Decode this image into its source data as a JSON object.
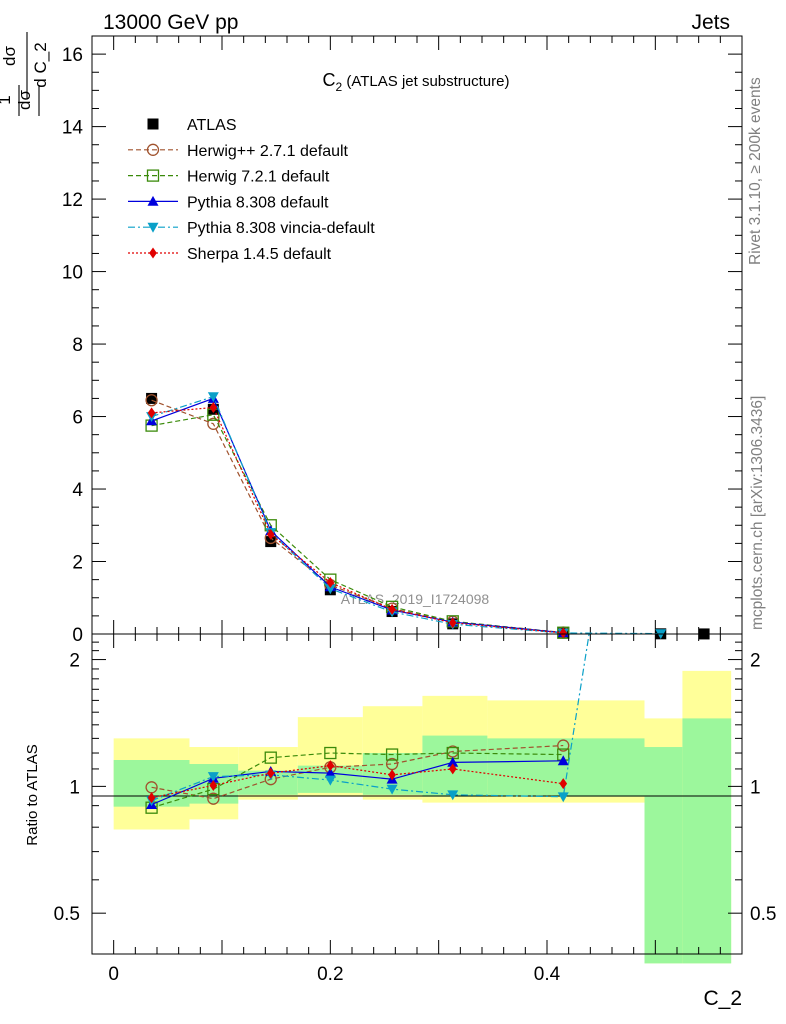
{
  "header": {
    "left": "13000 GeV pp",
    "right": "Jets",
    "side_top": "Rivet 3.1.10, ≥ 200k events",
    "side_bottom": "mcplots.cern.ch [arXiv:1306.3436]",
    "watermark": "ATLAS_2019_I1724098"
  },
  "colors": {
    "atlas": "#000000",
    "herwigpp": "#a0522d",
    "herwig7": "#3a8a0a",
    "pythia": "#0000dd",
    "vincia": "#0aa0c8",
    "sherpa": "#e00000",
    "band_inner": "#9cf79c",
    "band_outer": "#ffff99"
  },
  "chart_data": [
    {
      "type": "line",
      "title": "C2 (ATLAS jet substructure)",
      "title_main": "C",
      "title_sub": "2",
      "title_rest": " (ATLAS jet substructure)",
      "ylabel": "1/σ dσ/d C_2",
      "xlim": [
        -0.02,
        0.58
      ],
      "ylim": [
        0,
        16.5
      ],
      "yticks": [
        0,
        2,
        4,
        6,
        8,
        10,
        12,
        14,
        16
      ],
      "legend_position": "top-left",
      "series": [
        {
          "key": "atlas",
          "name": "ATLAS",
          "x": [
            0.035,
            0.092,
            0.145,
            0.2,
            0.257,
            0.313,
            0.415,
            0.505,
            0.545
          ],
          "y": [
            6.5,
            6.2,
            2.55,
            1.22,
            0.62,
            0.28,
            0.03,
            0.005,
            0.002
          ]
        },
        {
          "key": "herwigpp",
          "name": "Herwig++ 2.7.1 default",
          "x": [
            0.035,
            0.092,
            0.145,
            0.2,
            0.257,
            0.313,
            0.415
          ],
          "y": [
            6.45,
            5.8,
            2.65,
            1.35,
            0.7,
            0.34,
            0.04
          ]
        },
        {
          "key": "herwig7",
          "name": "Herwig 7.2.1 default",
          "x": [
            0.035,
            0.092,
            0.145,
            0.2,
            0.257,
            0.313,
            0.415
          ],
          "y": [
            5.75,
            6.05,
            3.0,
            1.5,
            0.75,
            0.35,
            0.035
          ]
        },
        {
          "key": "pythia",
          "name": "Pythia 8.308 default",
          "x": [
            0.035,
            0.092,
            0.145,
            0.2,
            0.257,
            0.313,
            0.415
          ],
          "y": [
            5.88,
            6.5,
            2.85,
            1.3,
            0.66,
            0.33,
            0.035
          ]
        },
        {
          "key": "vincia",
          "name": "Pythia 8.308 vincia-default",
          "x": [
            0.035,
            0.092,
            0.145,
            0.2,
            0.257,
            0.313,
            0.415,
            0.505
          ],
          "y": [
            6.0,
            6.55,
            2.8,
            1.25,
            0.61,
            0.27,
            0.028,
            0.01
          ]
        },
        {
          "key": "sherpa",
          "name": "Sherpa 1.4.5 default",
          "x": [
            0.035,
            0.092,
            0.145,
            0.2,
            0.257,
            0.313,
            0.415
          ],
          "y": [
            6.1,
            6.25,
            2.75,
            1.42,
            0.68,
            0.31,
            0.03
          ]
        }
      ]
    },
    {
      "type": "line",
      "ylabel": "Ratio to ATLAS",
      "xlabel": "C_2",
      "xlim": [
        -0.02,
        0.58
      ],
      "ylim": [
        0.4,
        2.3
      ],
      "yscale": "log",
      "yticks": [
        0.5,
        1,
        2
      ],
      "xticks": [
        0,
        0.2,
        0.4
      ],
      "bands": [
        {
          "x0": 0.0,
          "x1": 0.07,
          "inner": [
            0.895,
            1.155
          ],
          "outer": [
            0.79,
            1.3
          ]
        },
        {
          "x0": 0.07,
          "x1": 0.115,
          "inner": [
            0.91,
            1.13
          ],
          "outer": [
            0.835,
            1.24
          ]
        },
        {
          "x0": 0.115,
          "x1": 0.17,
          "inner": [
            0.955,
            1.09
          ],
          "outer": [
            0.93,
            1.24
          ]
        },
        {
          "x0": 0.17,
          "x1": 0.23,
          "inner": [
            0.965,
            1.12
          ],
          "outer": [
            0.945,
            1.46
          ]
        },
        {
          "x0": 0.23,
          "x1": 0.285,
          "inner": [
            0.955,
            1.2
          ],
          "outer": [
            0.93,
            1.55
          ]
        },
        {
          "x0": 0.285,
          "x1": 0.345,
          "inner": [
            0.945,
            1.32
          ],
          "outer": [
            0.915,
            1.64
          ]
        },
        {
          "x0": 0.345,
          "x1": 0.49,
          "inner": [
            0.945,
            1.3
          ],
          "outer": [
            0.915,
            1.6
          ]
        },
        {
          "x0": 0.49,
          "x1": 0.525,
          "inner": [
            0.38,
            1.24
          ],
          "outer": [
            0.38,
            1.45
          ]
        },
        {
          "x0": 0.525,
          "x1": 0.57,
          "inner": [
            0.38,
            1.45
          ],
          "outer": [
            0.38,
            1.88
          ]
        }
      ],
      "series": [
        {
          "key": "herwigpp",
          "x": [
            0.035,
            0.092,
            0.145,
            0.2,
            0.257,
            0.313,
            0.415
          ],
          "y": [
            0.995,
            0.935,
            1.04,
            1.11,
            1.13,
            1.21,
            1.25
          ]
        },
        {
          "key": "herwig7",
          "x": [
            0.035,
            0.092,
            0.145,
            0.2,
            0.257,
            0.313,
            0.415
          ],
          "y": [
            0.89,
            0.985,
            1.17,
            1.2,
            1.19,
            1.2,
            1.19
          ]
        },
        {
          "key": "pythia",
          "x": [
            0.035,
            0.092,
            0.145,
            0.2,
            0.257,
            0.313,
            0.415
          ],
          "y": [
            0.905,
            1.045,
            1.085,
            1.075,
            1.04,
            1.14,
            1.15
          ]
        },
        {
          "key": "vincia",
          "x": [
            0.035,
            0.092,
            0.145,
            0.2,
            0.257,
            0.313,
            0.415,
            0.44
          ],
          "y": [
            0.925,
            1.055,
            1.065,
            1.035,
            0.985,
            0.955,
            0.945,
            2.4
          ]
        },
        {
          "key": "sherpa",
          "x": [
            0.035,
            0.092,
            0.145,
            0.2,
            0.257,
            0.313,
            0.415
          ],
          "y": [
            0.94,
            1.005,
            1.075,
            1.12,
            1.065,
            1.1,
            1.015
          ]
        }
      ]
    }
  ]
}
